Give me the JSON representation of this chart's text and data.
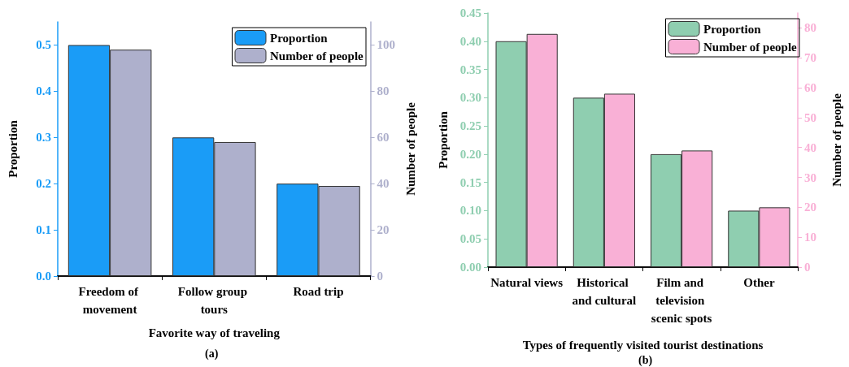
{
  "chart_data": [
    {
      "type": "bar",
      "xlabel": "Favorite way of traveling",
      "ylabel": "Proportion",
      "y2label": "Number of people",
      "annotations": [
        "(a)"
      ],
      "categories": [
        "Freedom of movement",
        "Follow group tours",
        "Road trip"
      ],
      "series": [
        {
          "name": "Proportion",
          "color": "#1a9cf7",
          "values": [
            0.5,
            0.3,
            0.2
          ]
        },
        {
          "name": "Number of people",
          "color": "#aeb0cc",
          "values": [
            98,
            58,
            39
          ],
          "axis": "y2"
        }
      ],
      "ylim": [
        0,
        0.55
      ],
      "yticks": [
        {
          "value": 0,
          "label": "0.0"
        },
        {
          "value": 0.1,
          "label": "0.1"
        },
        {
          "value": 0.2,
          "label": "0.2"
        },
        {
          "value": 0.3,
          "label": "0.3"
        },
        {
          "value": 0.4,
          "label": "0.4"
        },
        {
          "value": 0.5,
          "label": "0.5"
        }
      ],
      "y2lim": [
        0,
        110
      ],
      "y2ticks": [
        0,
        20,
        40,
        60,
        80,
        100
      ],
      "grid": false,
      "legend": "top right"
    },
    {
      "type": "bar",
      "xlabel": "Types of frequently visited tourist destinations",
      "ylabel": "Proportion",
      "y2label": "Number of people",
      "annotations": [
        "(b)"
      ],
      "categories": [
        "Natural views",
        "Historical and cultural",
        "Film and television scenic spots",
        "Other"
      ],
      "series": [
        {
          "name": "Proportion",
          "color": "#8fceb0",
          "values": [
            0.4,
            0.3,
            0.2,
            0.1
          ]
        },
        {
          "name": "Number of people",
          "color": "#f9b0d6",
          "values": [
            78,
            58,
            39,
            20
          ],
          "axis": "y2"
        }
      ],
      "ylim": [
        0,
        0.45
      ],
      "yticks": [
        {
          "value": 0,
          "label": "0.00"
        },
        {
          "value": 0.05,
          "label": "0.05"
        },
        {
          "value": 0.1,
          "label": "0.10"
        },
        {
          "value": 0.15,
          "label": "0.15"
        },
        {
          "value": 0.2,
          "label": "0.20"
        },
        {
          "value": 0.25,
          "label": "0.25"
        },
        {
          "value": 0.3,
          "label": "0.30"
        },
        {
          "value": 0.35,
          "label": "0.35"
        },
        {
          "value": 0.4,
          "label": "0.40"
        },
        {
          "value": 0.45,
          "label": "0.45"
        }
      ],
      "y2lim": [
        0,
        85
      ],
      "y2ticks": [
        0,
        10,
        20,
        30,
        40,
        50,
        60,
        70,
        80
      ],
      "grid": false,
      "legend": "top right"
    }
  ]
}
